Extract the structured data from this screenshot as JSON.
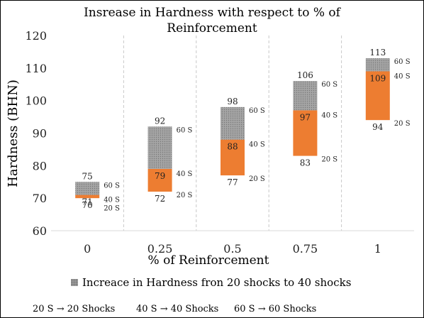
{
  "chart_data": {
    "type": "bar",
    "title_lines": [
      "Insrease in Hardness with respect to %  of",
      "Reinforcement"
    ],
    "xlabel": "% of Reinforcement",
    "ylabel": "Hardness (BHN)",
    "ylim": [
      60,
      120
    ],
    "yticks": [
      "60",
      "70",
      "80",
      "90",
      "100",
      "110",
      "120"
    ],
    "categories": [
      "0",
      "0.25",
      "0.5",
      "0.75",
      "1"
    ],
    "values_20_shocks": [
      70,
      72,
      77,
      83,
      94
    ],
    "values_40_shocks": [
      71,
      79,
      88,
      97,
      109
    ],
    "values_60_shocks": [
      75,
      92,
      98,
      106,
      113
    ],
    "shock_labels": [
      "20 S",
      "40 S",
      "60 S"
    ],
    "grid": "vertical-dashed",
    "legend_position": "bottom",
    "legend_label": "Increace in Hardness fron 20 shocks to 40 shocks",
    "colors": {
      "lower_segment": "#ed7d31",
      "upper_segment": "#a5a5a5",
      "baseline": "#d9d9d9"
    }
  },
  "footnotes": [
    "20 S → 20 Shocks",
    "40 S → 40 Shocks",
    "60 S → 60 Shocks"
  ]
}
